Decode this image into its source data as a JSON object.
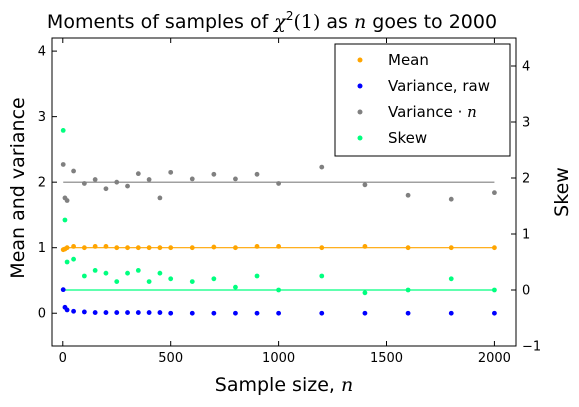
{
  "chart_data": {
    "type": "scatter",
    "title": {
      "prefix": "Moments of samples of ",
      "chi": "χ",
      "chi_sup": "2",
      "chi_arg": "(1)",
      "middle": " as ",
      "n": "n",
      "suffix": " goes to 2000"
    },
    "xlabel": {
      "text": "Sample size, ",
      "var": "n"
    },
    "ylabel": "Mean and variance",
    "y2label": "Skew",
    "xlim": [
      -50,
      2100
    ],
    "ylim": [
      -0.5,
      4.2
    ],
    "y2lim": [
      -1,
      4.5
    ],
    "xticks": [
      0,
      500,
      1000,
      1500,
      2000
    ],
    "yticks": [
      0,
      1,
      2,
      3,
      4
    ],
    "y2ticks": [
      -1,
      0,
      1,
      2,
      3,
      4
    ],
    "x": [
      2,
      10,
      20,
      50,
      100,
      150,
      200,
      250,
      300,
      350,
      400,
      450,
      500,
      600,
      700,
      800,
      900,
      1000,
      1200,
      1400,
      1600,
      1800,
      2000
    ],
    "reference_lines": [
      {
        "axis": "left",
        "y": 1,
        "color": "#FFA500"
      },
      {
        "axis": "left",
        "y": 2,
        "color": "#808080"
      },
      {
        "axis": "right",
        "y": 0,
        "color": "#00FF7F"
      }
    ],
    "series": [
      {
        "name": "Mean",
        "axis": "left",
        "color": "#FFA500",
        "values": [
          0.97,
          0.98,
          1.0,
          1.02,
          1.0,
          1.02,
          1.02,
          1.0,
          1.0,
          1.0,
          1.0,
          1.0,
          1.0,
          1.0,
          1.01,
          1.0,
          1.02,
          1.02,
          1.0,
          1.02,
          1.0,
          1.0,
          1.0
        ]
      },
      {
        "name": "Variance, raw",
        "axis": "left",
        "color": "#0000FF",
        "values": [
          0.36,
          0.09,
          0.05,
          0.03,
          0.02,
          0.01,
          0.01,
          0.01,
          0.01,
          0.01,
          0.01,
          0.01,
          0.0,
          0.0,
          0.0,
          0.0,
          0.0,
          0.0,
          0.0,
          0.0,
          0.0,
          0.0,
          0.0
        ]
      },
      {
        "name": "Variance · n",
        "name_parts": {
          "base": "Variance ",
          "dot": "·",
          "var": "n"
        },
        "axis": "left",
        "color": "#808080",
        "values": [
          2.27,
          1.76,
          1.72,
          2.17,
          1.98,
          2.04,
          1.9,
          2.0,
          1.94,
          2.13,
          2.04,
          1.76,
          2.15,
          2.05,
          2.12,
          2.05,
          2.12,
          1.98,
          2.23,
          1.96,
          1.8,
          1.74,
          1.84
        ]
      },
      {
        "name": "Skew",
        "axis": "right",
        "color": "#00FF7F",
        "values": [
          2.85,
          1.25,
          0.5,
          0.55,
          0.25,
          0.35,
          0.3,
          0.15,
          0.3,
          0.35,
          0.15,
          0.3,
          0.2,
          0.15,
          0.2,
          0.05,
          0.25,
          0.0,
          0.25,
          -0.05,
          0.0,
          0.2,
          0.0
        ]
      }
    ],
    "legend_position": "top-right",
    "grid": false
  }
}
